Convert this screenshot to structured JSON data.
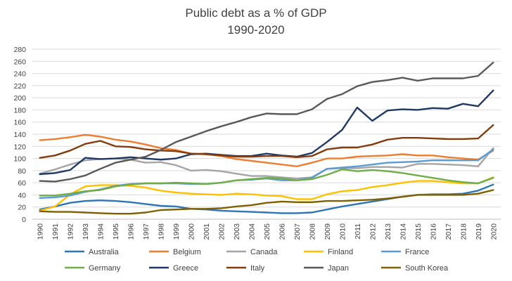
{
  "chart_data": {
    "type": "line",
    "title": "Public debt as a % of GDP",
    "subtitle": "1990-2020",
    "xlabel": "",
    "ylabel": "",
    "ylim": [
      0,
      280
    ],
    "yticks": [
      0,
      20,
      40,
      60,
      80,
      100,
      120,
      140,
      160,
      180,
      200,
      220,
      240,
      260,
      280
    ],
    "grid": true,
    "legend_position": "bottom",
    "categories": [
      "1990",
      "1991",
      "1992",
      "1993",
      "1994",
      "1995",
      "1996",
      "1997",
      "1998",
      "1999",
      "2000",
      "2001",
      "2002",
      "2003",
      "2004",
      "2005",
      "2006",
      "2007",
      "2008",
      "2009",
      "2010",
      "2011",
      "2012",
      "2013",
      "2014",
      "2015",
      "2016",
      "2017",
      "2018",
      "2019",
      "2020"
    ],
    "series": [
      {
        "name": "Australia",
        "color": "#2e75b6",
        "values": [
          16,
          21,
          27,
          30,
          31,
          30,
          28,
          25,
          22,
          21,
          17,
          16,
          14,
          13,
          12,
          11,
          10,
          10,
          11,
          16,
          21,
          25,
          29,
          33,
          37,
          40,
          41,
          41,
          42,
          47,
          57
        ]
      },
      {
        "name": "Belgium",
        "color": "#ed7d31",
        "values": [
          130,
          132,
          135,
          139,
          136,
          131,
          128,
          123,
          117,
          114,
          108,
          107,
          104,
          99,
          96,
          93,
          90,
          87,
          93,
          100,
          100,
          103,
          104,
          105,
          107,
          105,
          105,
          102,
          100,
          98,
          113
        ]
      },
      {
        "name": "Canada",
        "color": "#a5a5a5",
        "values": [
          75,
          82,
          90,
          97,
          99,
          100,
          98,
          93,
          94,
          89,
          80,
          81,
          79,
          75,
          71,
          71,
          69,
          67,
          69,
          83,
          84,
          84,
          86,
          86,
          85,
          91,
          91,
          90,
          89,
          87,
          117
        ]
      },
      {
        "name": "Finland",
        "color": "#ffc000",
        "values": [
          14,
          21,
          41,
          54,
          56,
          56,
          55,
          52,
          47,
          44,
          42,
          41,
          40,
          42,
          41,
          39,
          38,
          33,
          33,
          41,
          46,
          48,
          53,
          56,
          60,
          63,
          63,
          61,
          59,
          59,
          69
        ]
      },
      {
        "name": "France",
        "color": "#5b9bd5",
        "values": [
          35,
          36,
          39,
          45,
          49,
          55,
          58,
          59,
          59,
          59,
          58,
          58,
          60,
          64,
          65,
          67,
          64,
          64,
          68,
          83,
          85,
          87,
          90,
          93,
          94,
          95,
          97,
          97,
          97,
          97,
          115
        ]
      },
      {
        "name": "Germany",
        "color": "#70ad47",
        "values": [
          39,
          39,
          42,
          46,
          48,
          54,
          57,
          59,
          59,
          60,
          59,
          58,
          60,
          64,
          66,
          68,
          67,
          64,
          66,
          73,
          82,
          79,
          81,
          79,
          76,
          72,
          68,
          64,
          61,
          59,
          68
        ]
      },
      {
        "name": "Greece",
        "color": "#1f3864",
        "values": [
          74,
          76,
          81,
          101,
          99,
          100,
          102,
          100,
          98,
          100,
          107,
          108,
          106,
          104,
          104,
          108,
          105,
          103,
          109,
          127,
          147,
          184,
          162,
          179,
          181,
          180,
          183,
          182,
          190,
          186,
          212
        ]
      },
      {
        "name": "Italy",
        "color": "#843c0c",
        "values": [
          101,
          105,
          113,
          124,
          129,
          120,
          119,
          115,
          113,
          112,
          108,
          107,
          105,
          103,
          103,
          104,
          104,
          102,
          104,
          115,
          118,
          118,
          123,
          131,
          134,
          134,
          133,
          132,
          132,
          133,
          155
        ]
      },
      {
        "name": "Japan",
        "color": "#595959",
        "values": [
          63,
          62,
          66,
          72,
          83,
          93,
          98,
          103,
          114,
          127,
          136,
          145,
          153,
          160,
          168,
          174,
          173,
          173,
          181,
          198,
          206,
          219,
          226,
          229,
          233,
          228,
          232,
          232,
          232,
          236,
          258
        ]
      },
      {
        "name": "South Korea",
        "color": "#806000",
        "values": [
          13,
          12,
          12,
          11,
          10,
          9,
          9,
          11,
          15,
          16,
          17,
          17,
          18,
          21,
          23,
          27,
          29,
          28,
          28,
          30,
          30,
          31,
          32,
          34,
          37,
          40,
          40,
          40,
          40,
          42,
          48
        ]
      }
    ]
  }
}
